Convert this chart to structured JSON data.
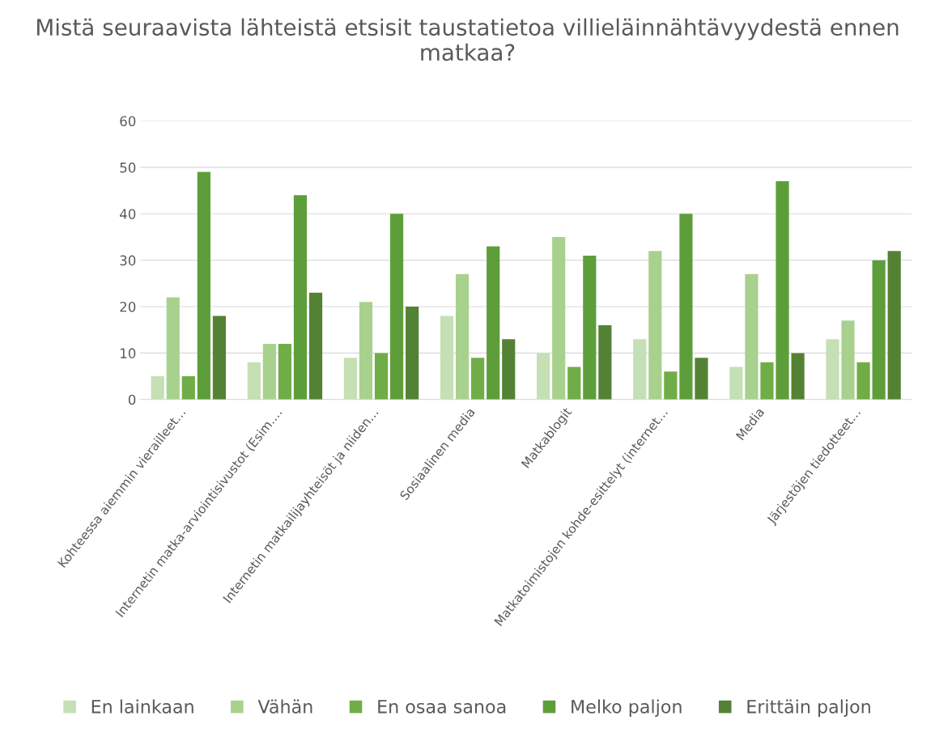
{
  "chart_data": {
    "type": "bar",
    "title": "Mistä seuraavista lähteistä etsisit taustatietoa villieläinnähtävyydestä ennen matkaa?",
    "categories": [
      "Kohteessa aiemmin vierailleet…",
      "Internetin matka-arviointisivustot (Esim.…",
      "Internetin matkailijayhteisöt ja niiden…",
      "Sosiaalinen media",
      "Matkablogit",
      "Matkatoimistojen kohde-esittelyt (internet…",
      "Media",
      "Järjestöjen tiedotteet…"
    ],
    "series": [
      {
        "name": "En lainkaan",
        "color": "#c5e0b4",
        "values": [
          5,
          8,
          9,
          18,
          10,
          13,
          7,
          13
        ]
      },
      {
        "name": "Vähän",
        "color": "#a9d18e",
        "values": [
          22,
          12,
          21,
          27,
          35,
          32,
          27,
          17
        ]
      },
      {
        "name": "En osaa sanoa",
        "color": "#70ad47",
        "values": [
          5,
          12,
          10,
          9,
          7,
          6,
          8,
          8
        ]
      },
      {
        "name": "Melko paljon",
        "color": "#5e9e3a",
        "values": [
          49,
          44,
          40,
          33,
          31,
          40,
          47,
          30
        ]
      },
      {
        "name": "Erittäin paljon",
        "color": "#548235",
        "values": [
          18,
          23,
          20,
          13,
          16,
          9,
          10,
          32
        ]
      }
    ],
    "ylim": [
      0,
      60
    ],
    "yticks": [
      0,
      10,
      20,
      30,
      40,
      50,
      60
    ],
    "grid": "y",
    "legend": "bottom"
  }
}
